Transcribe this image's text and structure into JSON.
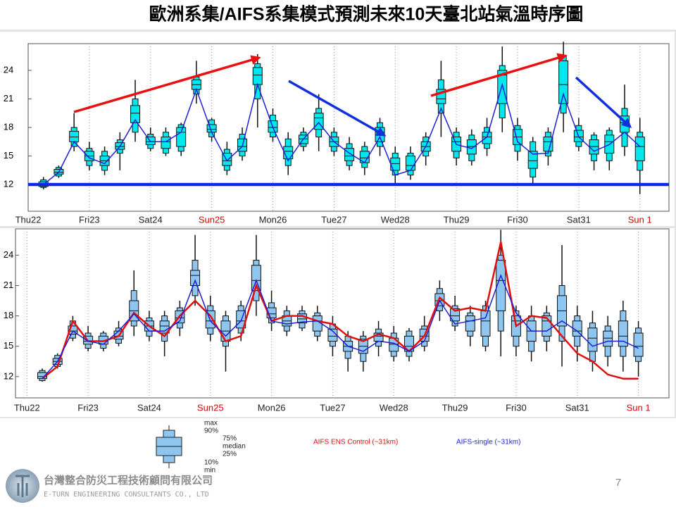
{
  "title": "歐洲系集/AIFS系集模式預測未來10天臺北站氣溫時序圖",
  "chart_data": [
    {
      "type": "boxplot",
      "box_color": "#00e8ee",
      "xlim": [
        -1,
        40.9
      ],
      "ylim": [
        9.2,
        26.8
      ],
      "yticks": [
        12,
        15,
        18,
        21,
        24
      ],
      "grid": true,
      "xticks": [
        {
          "value": -1,
          "label": "Thu22",
          "color": "#222"
        },
        {
          "value": 3,
          "label": "Fri23",
          "color": "#222"
        },
        {
          "value": 7,
          "label": "Sat24",
          "color": "#222"
        },
        {
          "value": 11,
          "label": "Sun25",
          "color": "#e00000"
        },
        {
          "value": 15,
          "label": "Mon26",
          "color": "#222"
        },
        {
          "value": 19,
          "label": "Tue27",
          "color": "#222"
        },
        {
          "value": 23,
          "label": "Wed28",
          "color": "#222"
        },
        {
          "value": 27,
          "label": "Thu29",
          "color": "#222"
        },
        {
          "value": 31,
          "label": "Fri30",
          "color": "#222"
        },
        {
          "value": 35,
          "label": "Sat31",
          "color": "#222"
        },
        {
          "value": 39,
          "label": "Sun 1",
          "color": "#e00000"
        }
      ],
      "boxes": [
        [
          11.5,
          11.7,
          11.8,
          12,
          12.3,
          12.5,
          12.8
        ],
        [
          12.7,
          12.9,
          13.1,
          13.3,
          13.6,
          13.8,
          14
        ],
        [
          15.5,
          16,
          16.5,
          17,
          17.6,
          18,
          19.5
        ],
        [
          13.5,
          14,
          14.5,
          15,
          15.5,
          15.8,
          16.5
        ],
        [
          13,
          13.5,
          14,
          14.5,
          15,
          15.5,
          16
        ],
        [
          13.5,
          15.3,
          15.7,
          16,
          16.4,
          16.7,
          17.5
        ],
        [
          16.5,
          17.5,
          18.5,
          19.5,
          20.3,
          21,
          23
        ],
        [
          15.5,
          15.8,
          16.2,
          16.5,
          17,
          17.3,
          18
        ],
        [
          15,
          15.3,
          15.8,
          16.5,
          17,
          17.5,
          18
        ],
        [
          15,
          15.5,
          16,
          17.5,
          18,
          18.3,
          18.5
        ],
        [
          20.5,
          21.5,
          22,
          22.5,
          23,
          23.3,
          25
        ],
        [
          16.5,
          17,
          17.5,
          17.8,
          18.3,
          18.8,
          19
        ],
        [
          13,
          13.5,
          14,
          14.5,
          15.3,
          15.7,
          16.5
        ],
        [
          14.5,
          15,
          15.5,
          16,
          16.8,
          17.3,
          18
        ],
        [
          18,
          21,
          22.5,
          23.5,
          24.3,
          24.7,
          25.7
        ],
        [
          16.5,
          17,
          17.5,
          18,
          18.7,
          19.3,
          20
        ],
        [
          13,
          14,
          14.7,
          15.5,
          16,
          16.8,
          17.5
        ],
        [
          15.5,
          16,
          16.3,
          16.8,
          17.2,
          17.5,
          18
        ],
        [
          15.5,
          17,
          17.8,
          19,
          19.5,
          20,
          21.5
        ],
        [
          15,
          15.5,
          16,
          16.5,
          17,
          17.5,
          18
        ],
        [
          13.5,
          14,
          14.5,
          15,
          15.8,
          16.3,
          17
        ],
        [
          13,
          13.8,
          14.3,
          14.8,
          15.5,
          16,
          16.5
        ],
        [
          15,
          16,
          16.5,
          17.5,
          18,
          18.5,
          19
        ],
        [
          12,
          13,
          13.5,
          14.2,
          14.8,
          15.3,
          16
        ],
        [
          12.5,
          13,
          13.5,
          14,
          15,
          15.3,
          16
        ],
        [
          14,
          15,
          15.5,
          16,
          16.5,
          17,
          17.5
        ],
        [
          17,
          19.5,
          20.5,
          21,
          22,
          23,
          25
        ],
        [
          14,
          14.8,
          15.5,
          16.5,
          17,
          17.5,
          18
        ],
        [
          14,
          14.5,
          15.2,
          16,
          16.7,
          17.2,
          17.8
        ],
        [
          15,
          15.8,
          16.3,
          17,
          17.5,
          18,
          19
        ],
        [
          17.5,
          19,
          20.5,
          23.5,
          24,
          24.5,
          26.5
        ],
        [
          14.5,
          15.5,
          16.2,
          17,
          17.8,
          18.2,
          19
        ],
        [
          12,
          12.8,
          13.7,
          14.5,
          15.5,
          16.5,
          17
        ],
        [
          14,
          15,
          15.5,
          16.5,
          17,
          17.5,
          18
        ],
        [
          17.5,
          19.5,
          20.5,
          22.5,
          25,
          25.5,
          27
        ],
        [
          15.5,
          16,
          16.5,
          17,
          17.7,
          18.2,
          19
        ],
        [
          13.5,
          14.5,
          15.2,
          16,
          16.7,
          17.2,
          17.5
        ],
        [
          13.5,
          14.5,
          15.3,
          16.5,
          17.2,
          17.7,
          18
        ],
        [
          15,
          16,
          17.5,
          18.5,
          19.2,
          20,
          22.5
        ],
        [
          11,
          13.5,
          14.5,
          16,
          17,
          17.5,
          19
        ]
      ],
      "series": [
        {
          "color": "#1f1fd8",
          "values": [
            12,
            13.3,
            16.5,
            14.8,
            14.2,
            16,
            18.8,
            16.5,
            16.5,
            17.5,
            22,
            17.5,
            14.5,
            16,
            22.5,
            18,
            14.5,
            16.8,
            18.5,
            16.5,
            15.3,
            14.3,
            17,
            13,
            13.5,
            16,
            20,
            16.2,
            15.8,
            17,
            22.5,
            16.5,
            15.2,
            15.3,
            21.5,
            17,
            15.5,
            16.2,
            17.5,
            16
          ]
        }
      ]
    },
    {
      "type": "boxplot",
      "box_color": "#8ec6ef",
      "xlim": [
        -1.75,
        41
      ],
      "ylim": [
        9.9,
        26.6
      ],
      "yticks": [
        12,
        15,
        18,
        21,
        24
      ],
      "grid": true,
      "xticks": [
        {
          "value": -1,
          "label": "Thu22",
          "color": "#222"
        },
        {
          "value": 3,
          "label": "Fri23",
          "color": "#222"
        },
        {
          "value": 7,
          "label": "Sat24",
          "color": "#222"
        },
        {
          "value": 11,
          "label": "Sun25",
          "color": "#e00000"
        },
        {
          "value": 15,
          "label": "Mon26",
          "color": "#222"
        },
        {
          "value": 19,
          "label": "Tue27",
          "color": "#222"
        },
        {
          "value": 23,
          "label": "Wed28",
          "color": "#222"
        },
        {
          "value": 27,
          "label": "Thu29",
          "color": "#222"
        },
        {
          "value": 31,
          "label": "Fri30",
          "color": "#222"
        },
        {
          "value": 35,
          "label": "Sat31",
          "color": "#222"
        },
        {
          "value": 39,
          "label": "Sun 1",
          "color": "#e00000"
        }
      ],
      "boxes": [
        [
          11.5,
          11.6,
          11.8,
          12,
          12.4,
          12.6,
          12.8
        ],
        [
          12.8,
          13,
          13.2,
          13.5,
          13.8,
          14.1,
          14.3
        ],
        [
          15.5,
          15.8,
          16.2,
          16.5,
          17,
          17.5,
          18
        ],
        [
          14.5,
          14.8,
          15.2,
          15.5,
          16,
          16.3,
          17
        ],
        [
          14.5,
          14.8,
          15.2,
          15.5,
          16,
          16.3,
          16.5
        ],
        [
          15,
          15.3,
          15.7,
          16,
          16.5,
          16.8,
          17.5
        ],
        [
          16,
          17,
          17.5,
          18.5,
          19.5,
          20.5,
          22.5
        ],
        [
          15.5,
          16,
          16.5,
          17,
          17.5,
          17.8,
          18.5
        ],
        [
          14,
          15.5,
          16.3,
          17,
          17.5,
          18,
          18.5
        ],
        [
          16,
          16.8,
          17.3,
          17.8,
          18.5,
          18.8,
          19.5
        ],
        [
          19,
          20,
          21,
          22,
          22.5,
          23.5,
          26
        ],
        [
          15.5,
          16.2,
          16.8,
          17.5,
          18.5,
          19,
          20
        ],
        [
          12.5,
          15,
          15.5,
          16.5,
          17.5,
          18,
          18.5
        ],
        [
          15.5,
          16.3,
          16.8,
          17.5,
          18.5,
          19,
          19.5
        ],
        [
          18,
          19.5,
          20.5,
          21.5,
          23,
          23.5,
          26
        ],
        [
          16.5,
          17.3,
          17.8,
          18.2,
          18.8,
          19.3,
          20.5
        ],
        [
          16,
          16.5,
          17,
          17.5,
          18,
          18.5,
          19
        ],
        [
          16.5,
          16.8,
          17.3,
          17.7,
          18.2,
          18.5,
          19
        ],
        [
          15.5,
          16,
          16.5,
          17.5,
          18,
          18.3,
          19
        ],
        [
          14,
          15,
          15.5,
          16,
          16.7,
          17.2,
          18
        ],
        [
          12.5,
          13.8,
          14.5,
          15,
          15.5,
          16,
          16.5
        ],
        [
          12.5,
          13.5,
          14.3,
          15,
          15.7,
          16,
          16.5
        ],
        [
          14,
          15,
          15.5,
          16,
          16.3,
          16.7,
          17.5
        ],
        [
          13.5,
          14,
          14.5,
          15.2,
          15.8,
          16.3,
          17
        ],
        [
          13.5,
          14,
          14.5,
          15,
          16,
          16.5,
          16.8
        ],
        [
          14.5,
          15,
          15.5,
          16,
          16.7,
          17,
          18
        ],
        [
          17.5,
          18.5,
          19,
          19.5,
          20.2,
          20.7,
          21.5
        ],
        [
          16.5,
          17,
          17.5,
          18,
          18.7,
          19,
          20
        ],
        [
          15,
          16,
          16.5,
          17.5,
          18,
          18.3,
          19
        ],
        [
          14.5,
          15,
          16,
          17.5,
          18.5,
          19,
          19.5
        ],
        [
          14,
          16.5,
          18.5,
          21.5,
          23.5,
          24,
          26.5
        ],
        [
          14,
          15,
          16,
          17.5,
          18,
          18.5,
          19
        ],
        [
          13.5,
          14.5,
          15.5,
          16.5,
          17.5,
          18,
          19
        ],
        [
          14.5,
          15.5,
          16,
          17.5,
          18,
          18.3,
          19
        ],
        [
          13,
          15.5,
          17,
          18.5,
          20,
          21,
          25
        ],
        [
          13.5,
          15,
          16,
          16.5,
          17.5,
          18,
          19
        ],
        [
          12.5,
          13.5,
          14.5,
          15.8,
          16.8,
          17.3,
          18.5
        ],
        [
          13,
          14,
          15,
          15.8,
          16.5,
          17,
          18
        ],
        [
          12.5,
          14,
          15,
          16,
          17.5,
          18.5,
          19.5
        ],
        [
          12,
          13.5,
          14,
          15,
          16.3,
          16.8,
          17.5
        ]
      ],
      "series": [
        {
          "name": "AIFS ENS Control (~31km)",
          "color": "#e01010",
          "values": [
            11.8,
            13,
            17.5,
            15.5,
            15.5,
            16,
            18.3,
            17,
            16,
            18,
            19.5,
            18,
            15.5,
            16,
            21,
            17.5,
            18,
            18,
            17.5,
            17.2,
            16,
            15.5,
            16.2,
            15.8,
            14.5,
            16,
            19.8,
            18.5,
            18.8,
            18.5,
            25.3,
            17,
            18,
            17.8,
            16,
            14.3,
            13.5,
            12.2,
            11.8,
            11.8
          ]
        },
        {
          "name": "AIFS-single (~31km)",
          "color": "#1f1fd8",
          "values": [
            11.8,
            13.5,
            16.5,
            15.5,
            15.2,
            16.5,
            18.2,
            16.5,
            16.5,
            17.5,
            21.5,
            17.5,
            16,
            17.5,
            21.5,
            17.5,
            17.2,
            17.4,
            17.5,
            16.5,
            15,
            14.5,
            15.5,
            15.3,
            14.5,
            15.5,
            19.5,
            17.2,
            17.5,
            17.8,
            22,
            18.3,
            16.5,
            16.5,
            17.5,
            16.5,
            15,
            15.5,
            15.5,
            14.8
          ]
        }
      ]
    }
  ],
  "legend": {
    "stats": [
      "max",
      "90%",
      "75%",
      "median",
      "25%",
      "10%",
      "min"
    ]
  },
  "footer": {
    "company": "台灣整合防災工程技術顧問有限公司",
    "company_en": "E-TURN ENGINEERING CONSULTANTS CO., LTD",
    "page": "7"
  }
}
